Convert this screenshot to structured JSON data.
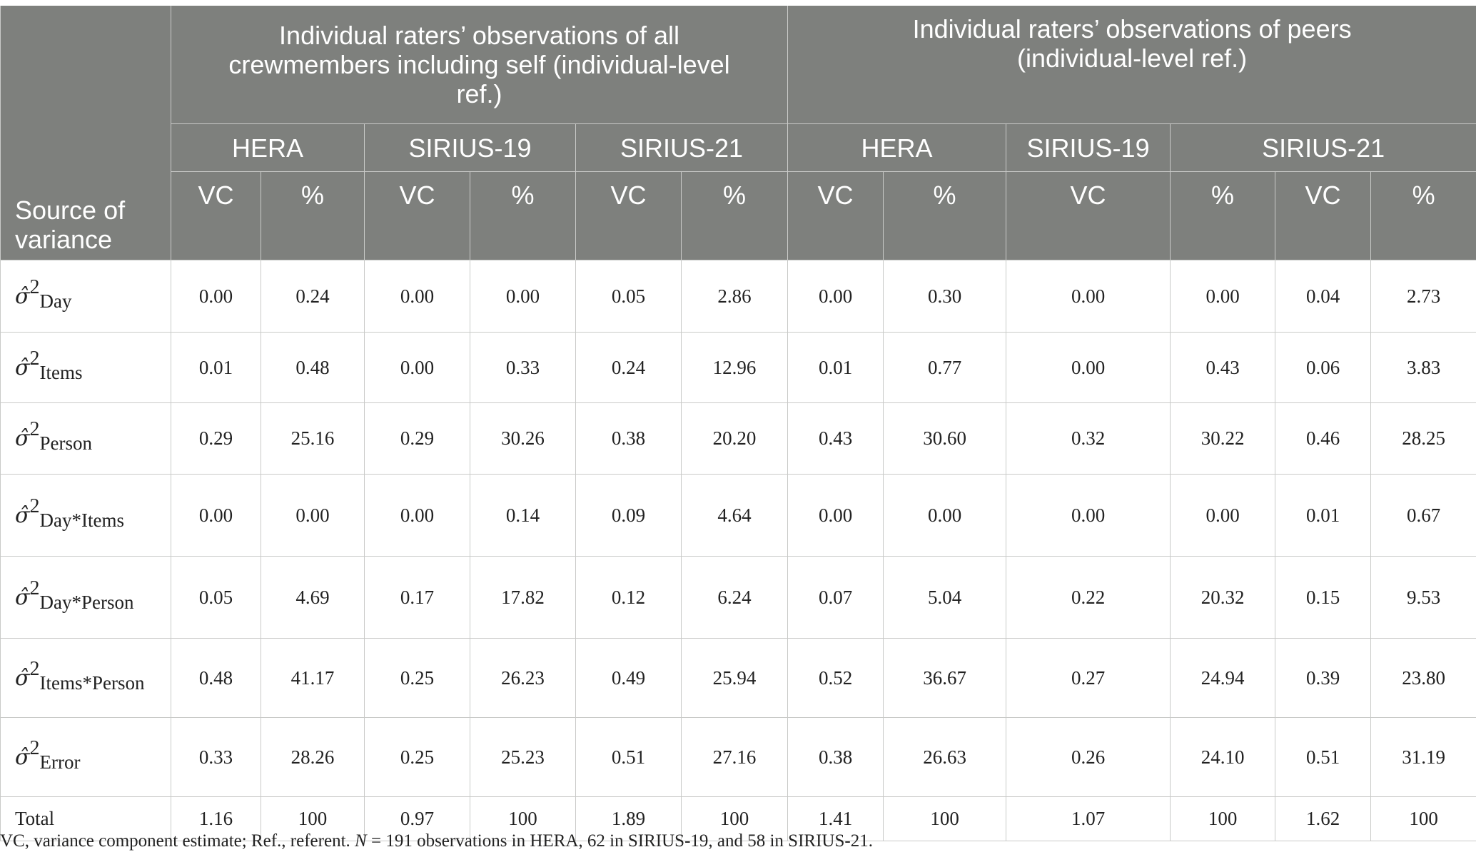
{
  "header": {
    "group1": "Individual raters’ observations of all crewmembers including self (individual-level ref.)",
    "group2": "Individual raters’ observations of peers (individual-level ref.)",
    "studies": [
      "HERA",
      "SIRIUS-19",
      "SIRIUS-21",
      "HERA",
      "SIRIUS-19",
      "SIRIUS-21"
    ],
    "source_label": "Source of variance",
    "subcols": [
      "VC",
      "%",
      "VC",
      "%",
      "VC",
      "%",
      "VC",
      "%",
      "VC",
      "%",
      "VC",
      "%"
    ]
  },
  "rows": [
    {
      "symbol": "σ̂",
      "sup": "2",
      "sub": "Day",
      "values": [
        "0.00",
        "0.24",
        "0.00",
        "0.00",
        "0.05",
        "2.86",
        "0.00",
        "0.30",
        "0.00",
        "0.00",
        "0.04",
        "2.73"
      ]
    },
    {
      "symbol": "σ̂",
      "sup": "2",
      "sub": "Items",
      "values": [
        "0.01",
        "0.48",
        "0.00",
        "0.33",
        "0.24",
        "12.96",
        "0.01",
        "0.77",
        "0.00",
        "0.43",
        "0.06",
        "3.83"
      ]
    },
    {
      "symbol": "σ̂",
      "sup": "2",
      "sub": "Person",
      "values": [
        "0.29",
        "25.16",
        "0.29",
        "30.26",
        "0.38",
        "20.20",
        "0.43",
        "30.60",
        "0.32",
        "30.22",
        "0.46",
        "28.25"
      ]
    },
    {
      "symbol": "σ̂",
      "sup": "2",
      "sub": "Day*Items",
      "values": [
        "0.00",
        "0.00",
        "0.00",
        "0.14",
        "0.09",
        "4.64",
        "0.00",
        "0.00",
        "0.00",
        "0.00",
        "0.01",
        "0.67"
      ]
    },
    {
      "symbol": "σ̂",
      "sup": "2",
      "sub": "Day*Person",
      "values": [
        "0.05",
        "4.69",
        "0.17",
        "17.82",
        "0.12",
        "6.24",
        "0.07",
        "5.04",
        "0.22",
        "20.32",
        "0.15",
        "9.53"
      ]
    },
    {
      "symbol": "σ̂",
      "sup": "2",
      "sub": "Items*Person",
      "values": [
        "0.48",
        "41.17",
        "0.25",
        "26.23",
        "0.49",
        "25.94",
        "0.52",
        "36.67",
        "0.27",
        "24.94",
        "0.39",
        "23.80"
      ]
    },
    {
      "symbol": "σ̂",
      "sup": "2",
      "sub": "Error",
      "values": [
        "0.33",
        "28.26",
        "0.25",
        "25.23",
        "0.51",
        "27.16",
        "0.38",
        "26.63",
        "0.26",
        "24.10",
        "0.51",
        "31.19"
      ]
    }
  ],
  "total": {
    "label": "Total",
    "values": [
      "1.16",
      "100",
      "0.97",
      "100",
      "1.89",
      "100",
      "1.41",
      "100",
      "1.07",
      "100",
      "1.62",
      "100"
    ]
  },
  "note": {
    "prefix": "VC, variance component estimate; Ref., referent. ",
    "n": "N",
    "suffix": " = 191 observations in HERA, 62 in SIRIUS-19, and 58 in SIRIUS-21."
  }
}
